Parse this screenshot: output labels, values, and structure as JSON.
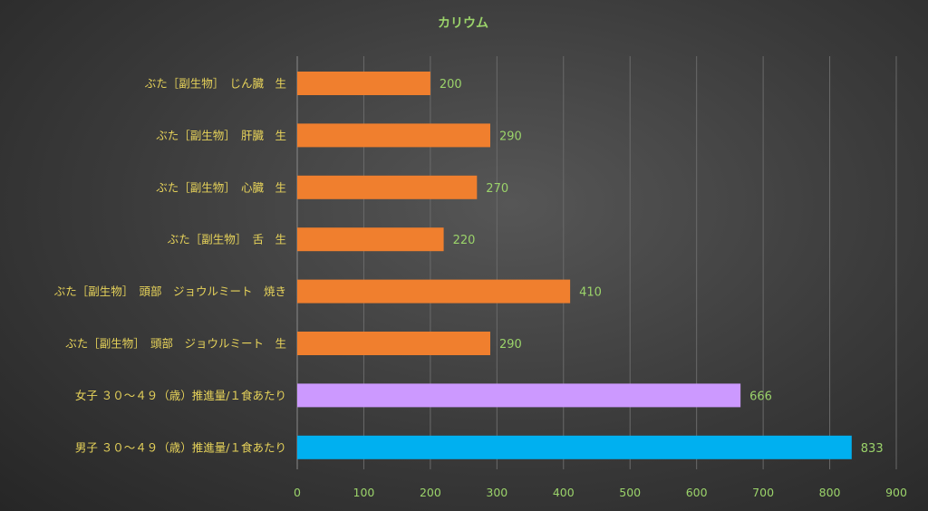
{
  "chart_data": {
    "type": "bar",
    "orientation": "horizontal",
    "title": "カリウム",
    "categories": [
      "ぶた［副生物］　じん臓　生",
      "ぶた［副生物］　肝臓　生",
      "ぶた［副生物］　心臓　生",
      "ぶた［副生物］　舌　生",
      "ぶた［副生物］　頭部　ジョウルミート　焼き",
      "ぶた［副生物］　頭部　ジョウルミート　生",
      "女子 ３０～４９（歳）推進量/１食あたり",
      "男子 ３０～４９（歳）推進量/１食あたり"
    ],
    "values": [
      200,
      290,
      270,
      220,
      410,
      290,
      666,
      833
    ],
    "bar_colors": [
      "#f07f2e",
      "#f07f2e",
      "#f07f2e",
      "#f07f2e",
      "#f07f2e",
      "#f07f2e",
      "#cc99ff",
      "#00b0f0"
    ],
    "xlim": [
      0,
      900
    ],
    "xticks": [
      0,
      100,
      200,
      300,
      400,
      500,
      600,
      700,
      800,
      900
    ],
    "grid": true,
    "legend": "none",
    "xlabel": "",
    "ylabel": ""
  },
  "colors": {
    "title": "#9bd36a",
    "category_labels": "#e7d35a",
    "tick_labels": "#9bd36a",
    "value_labels": "#9bd36a"
  }
}
